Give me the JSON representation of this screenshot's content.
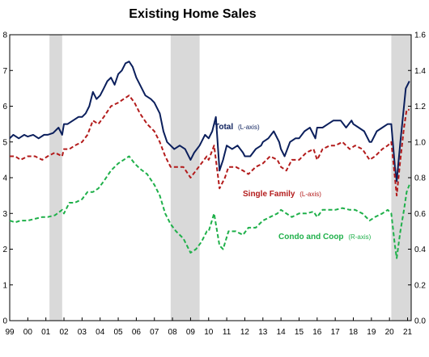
{
  "chart_data": {
    "type": "line",
    "title": "Existing Home Sales",
    "x_ticks": [
      "99",
      "00",
      "01",
      "02",
      "03",
      "04",
      "05",
      "06",
      "07",
      "08",
      "09",
      "10",
      "11",
      "12",
      "13",
      "14",
      "15",
      "16",
      "17",
      "18",
      "19",
      "20",
      "21"
    ],
    "xlim": [
      1999.0,
      2021.2
    ],
    "ylim_left": [
      0,
      8
    ],
    "ylim_right": [
      0.0,
      1.6
    ],
    "left_ticks": [
      "0",
      "1",
      "2",
      "3",
      "4",
      "5",
      "6",
      "7",
      "8"
    ],
    "right_ticks": [
      "0.0",
      "0.2",
      "0.4",
      "0.6",
      "0.8",
      "1.0",
      "1.2",
      "1.4",
      "1.6"
    ],
    "recessions": [
      [
        2001.2,
        2001.9
      ],
      [
        2007.9,
        2009.5
      ],
      [
        2020.1,
        2021.2
      ]
    ],
    "colors": {
      "total": "#0b1f5c",
      "single": "#b31b1b",
      "condo": "#1fb04a",
      "recession": "#d9d9d9"
    },
    "annotations": {
      "total": {
        "name": "Total",
        "axis": "(L-axis)"
      },
      "single": {
        "name": "Single Family",
        "axis": "(L-axis)"
      },
      "condo": {
        "name": "Condo and Coop",
        "axis": "(R-axis)"
      }
    },
    "series": [
      {
        "name": "Total",
        "axis": "left",
        "style": "solid",
        "points": [
          [
            1999.0,
            5.1
          ],
          [
            1999.2,
            5.2
          ],
          [
            1999.5,
            5.1
          ],
          [
            1999.8,
            5.2
          ],
          [
            2000.0,
            5.15
          ],
          [
            2000.3,
            5.2
          ],
          [
            2000.6,
            5.1
          ],
          [
            2000.9,
            5.2
          ],
          [
            2001.1,
            5.2
          ],
          [
            2001.4,
            5.25
          ],
          [
            2001.7,
            5.4
          ],
          [
            2001.9,
            5.2
          ],
          [
            2002.0,
            5.5
          ],
          [
            2002.2,
            5.5
          ],
          [
            2002.5,
            5.6
          ],
          [
            2002.8,
            5.7
          ],
          [
            2003.0,
            5.7
          ],
          [
            2003.2,
            5.8
          ],
          [
            2003.4,
            6.0
          ],
          [
            2003.6,
            6.4
          ],
          [
            2003.8,
            6.2
          ],
          [
            2004.0,
            6.3
          ],
          [
            2004.2,
            6.5
          ],
          [
            2004.4,
            6.7
          ],
          [
            2004.6,
            6.8
          ],
          [
            2004.8,
            6.6
          ],
          [
            2005.0,
            6.9
          ],
          [
            2005.2,
            7.0
          ],
          [
            2005.4,
            7.2
          ],
          [
            2005.6,
            7.25
          ],
          [
            2005.8,
            7.1
          ],
          [
            2006.0,
            6.8
          ],
          [
            2006.2,
            6.6
          ],
          [
            2006.5,
            6.3
          ],
          [
            2006.8,
            6.2
          ],
          [
            2007.0,
            6.1
          ],
          [
            2007.3,
            5.8
          ],
          [
            2007.5,
            5.3
          ],
          [
            2007.7,
            5.0
          ],
          [
            2007.9,
            4.9
          ],
          [
            2008.1,
            4.8
          ],
          [
            2008.4,
            4.9
          ],
          [
            2008.7,
            4.8
          ],
          [
            2009.0,
            4.5
          ],
          [
            2009.2,
            4.7
          ],
          [
            2009.5,
            4.9
          ],
          [
            2009.8,
            5.2
          ],
          [
            2010.0,
            5.1
          ],
          [
            2010.2,
            5.3
          ],
          [
            2010.4,
            5.7
          ],
          [
            2010.6,
            4.2
          ],
          [
            2010.8,
            4.5
          ],
          [
            2011.0,
            4.9
          ],
          [
            2011.3,
            4.8
          ],
          [
            2011.6,
            4.9
          ],
          [
            2011.9,
            4.7
          ],
          [
            2012.0,
            4.6
          ],
          [
            2012.3,
            4.6
          ],
          [
            2012.6,
            4.8
          ],
          [
            2012.9,
            4.9
          ],
          [
            2013.0,
            5.0
          ],
          [
            2013.3,
            5.1
          ],
          [
            2013.6,
            5.3
          ],
          [
            2013.9,
            5.0
          ],
          [
            2014.0,
            4.8
          ],
          [
            2014.2,
            4.6
          ],
          [
            2014.5,
            5.0
          ],
          [
            2014.8,
            5.1
          ],
          [
            2015.0,
            5.1
          ],
          [
            2015.3,
            5.3
          ],
          [
            2015.6,
            5.4
          ],
          [
            2015.9,
            5.1
          ],
          [
            2016.0,
            5.4
          ],
          [
            2016.3,
            5.4
          ],
          [
            2016.6,
            5.5
          ],
          [
            2016.9,
            5.6
          ],
          [
            2017.0,
            5.6
          ],
          [
            2017.3,
            5.6
          ],
          [
            2017.6,
            5.4
          ],
          [
            2017.9,
            5.6
          ],
          [
            2018.0,
            5.5
          ],
          [
            2018.3,
            5.4
          ],
          [
            2018.6,
            5.3
          ],
          [
            2018.9,
            5.0
          ],
          [
            2019.0,
            5.0
          ],
          [
            2019.3,
            5.3
          ],
          [
            2019.6,
            5.4
          ],
          [
            2019.9,
            5.5
          ],
          [
            2020.1,
            5.5
          ],
          [
            2020.3,
            4.3
          ],
          [
            2020.4,
            3.9
          ],
          [
            2020.6,
            5.0
          ],
          [
            2020.8,
            6.0
          ],
          [
            2020.9,
            6.5
          ],
          [
            2021.1,
            6.7
          ]
        ]
      },
      {
        "name": "Single Family",
        "axis": "left",
        "style": "dashed",
        "points": [
          [
            1999.0,
            4.6
          ],
          [
            1999.3,
            4.6
          ],
          [
            1999.6,
            4.5
          ],
          [
            2000.0,
            4.6
          ],
          [
            2000.4,
            4.6
          ],
          [
            2000.8,
            4.5
          ],
          [
            2001.1,
            4.6
          ],
          [
            2001.5,
            4.7
          ],
          [
            2001.9,
            4.6
          ],
          [
            2002.0,
            4.8
          ],
          [
            2002.3,
            4.8
          ],
          [
            2002.6,
            4.9
          ],
          [
            2003.0,
            5.0
          ],
          [
            2003.3,
            5.2
          ],
          [
            2003.6,
            5.6
          ],
          [
            2003.9,
            5.5
          ],
          [
            2004.2,
            5.7
          ],
          [
            2004.6,
            6.0
          ],
          [
            2005.0,
            6.1
          ],
          [
            2005.3,
            6.2
          ],
          [
            2005.6,
            6.3
          ],
          [
            2005.9,
            6.1
          ],
          [
            2006.2,
            5.8
          ],
          [
            2006.6,
            5.5
          ],
          [
            2007.0,
            5.3
          ],
          [
            2007.3,
            5.0
          ],
          [
            2007.6,
            4.6
          ],
          [
            2007.9,
            4.3
          ],
          [
            2008.2,
            4.3
          ],
          [
            2008.6,
            4.3
          ],
          [
            2009.0,
            4.0
          ],
          [
            2009.3,
            4.2
          ],
          [
            2009.6,
            4.4
          ],
          [
            2009.9,
            4.6
          ],
          [
            2010.0,
            4.5
          ],
          [
            2010.3,
            4.9
          ],
          [
            2010.6,
            3.7
          ],
          [
            2010.9,
            4.0
          ],
          [
            2011.1,
            4.3
          ],
          [
            2011.5,
            4.3
          ],
          [
            2011.9,
            4.2
          ],
          [
            2012.2,
            4.1
          ],
          [
            2012.6,
            4.3
          ],
          [
            2013.0,
            4.4
          ],
          [
            2013.4,
            4.6
          ],
          [
            2013.8,
            4.5
          ],
          [
            2014.0,
            4.3
          ],
          [
            2014.3,
            4.2
          ],
          [
            2014.6,
            4.5
          ],
          [
            2015.0,
            4.5
          ],
          [
            2015.4,
            4.7
          ],
          [
            2015.8,
            4.8
          ],
          [
            2016.0,
            4.5
          ],
          [
            2016.3,
            4.8
          ],
          [
            2016.7,
            4.9
          ],
          [
            2017.0,
            4.9
          ],
          [
            2017.4,
            5.0
          ],
          [
            2017.8,
            4.8
          ],
          [
            2018.1,
            4.9
          ],
          [
            2018.5,
            4.8
          ],
          [
            2018.9,
            4.5
          ],
          [
            2019.2,
            4.6
          ],
          [
            2019.6,
            4.8
          ],
          [
            2019.9,
            4.9
          ],
          [
            2020.1,
            5.0
          ],
          [
            2020.3,
            4.0
          ],
          [
            2020.4,
            3.5
          ],
          [
            2020.6,
            4.5
          ],
          [
            2020.8,
            5.4
          ],
          [
            2020.95,
            5.9
          ],
          [
            2021.1,
            5.9
          ]
        ]
      },
      {
        "name": "Condo and Coop",
        "axis": "right",
        "style": "dashed",
        "points": [
          [
            1999.0,
            0.56
          ],
          [
            1999.3,
            0.55
          ],
          [
            1999.6,
            0.56
          ],
          [
            2000.0,
            0.56
          ],
          [
            2000.4,
            0.57
          ],
          [
            2000.8,
            0.58
          ],
          [
            2001.1,
            0.58
          ],
          [
            2001.5,
            0.59
          ],
          [
            2001.9,
            0.62
          ],
          [
            2002.0,
            0.6
          ],
          [
            2002.3,
            0.66
          ],
          [
            2002.6,
            0.66
          ],
          [
            2003.0,
            0.68
          ],
          [
            2003.3,
            0.72
          ],
          [
            2003.6,
            0.72
          ],
          [
            2003.9,
            0.74
          ],
          [
            2004.2,
            0.78
          ],
          [
            2004.6,
            0.84
          ],
          [
            2005.0,
            0.88
          ],
          [
            2005.3,
            0.9
          ],
          [
            2005.6,
            0.92
          ],
          [
            2005.9,
            0.88
          ],
          [
            2006.2,
            0.85
          ],
          [
            2006.6,
            0.82
          ],
          [
            2007.0,
            0.76
          ],
          [
            2007.3,
            0.7
          ],
          [
            2007.6,
            0.6
          ],
          [
            2007.9,
            0.54
          ],
          [
            2008.2,
            0.5
          ],
          [
            2008.6,
            0.46
          ],
          [
            2009.0,
            0.38
          ],
          [
            2009.3,
            0.4
          ],
          [
            2009.6,
            0.44
          ],
          [
            2009.9,
            0.5
          ],
          [
            2010.0,
            0.5
          ],
          [
            2010.3,
            0.6
          ],
          [
            2010.6,
            0.42
          ],
          [
            2010.8,
            0.4
          ],
          [
            2011.1,
            0.5
          ],
          [
            2011.5,
            0.5
          ],
          [
            2011.9,
            0.48
          ],
          [
            2012.2,
            0.52
          ],
          [
            2012.6,
            0.52
          ],
          [
            2013.0,
            0.56
          ],
          [
            2013.4,
            0.58
          ],
          [
            2013.8,
            0.6
          ],
          [
            2014.0,
            0.62
          ],
          [
            2014.3,
            0.6
          ],
          [
            2014.6,
            0.58
          ],
          [
            2015.0,
            0.6
          ],
          [
            2015.4,
            0.6
          ],
          [
            2015.8,
            0.61
          ],
          [
            2016.0,
            0.58
          ],
          [
            2016.3,
            0.62
          ],
          [
            2016.7,
            0.62
          ],
          [
            2017.0,
            0.62
          ],
          [
            2017.4,
            0.63
          ],
          [
            2017.8,
            0.62
          ],
          [
            2018.1,
            0.62
          ],
          [
            2018.5,
            0.6
          ],
          [
            2018.9,
            0.56
          ],
          [
            2019.2,
            0.58
          ],
          [
            2019.6,
            0.6
          ],
          [
            2019.9,
            0.62
          ],
          [
            2020.1,
            0.6
          ],
          [
            2020.3,
            0.42
          ],
          [
            2020.4,
            0.35
          ],
          [
            2020.6,
            0.5
          ],
          [
            2020.8,
            0.62
          ],
          [
            2020.95,
            0.72
          ],
          [
            2021.1,
            0.76
          ]
        ]
      }
    ]
  }
}
